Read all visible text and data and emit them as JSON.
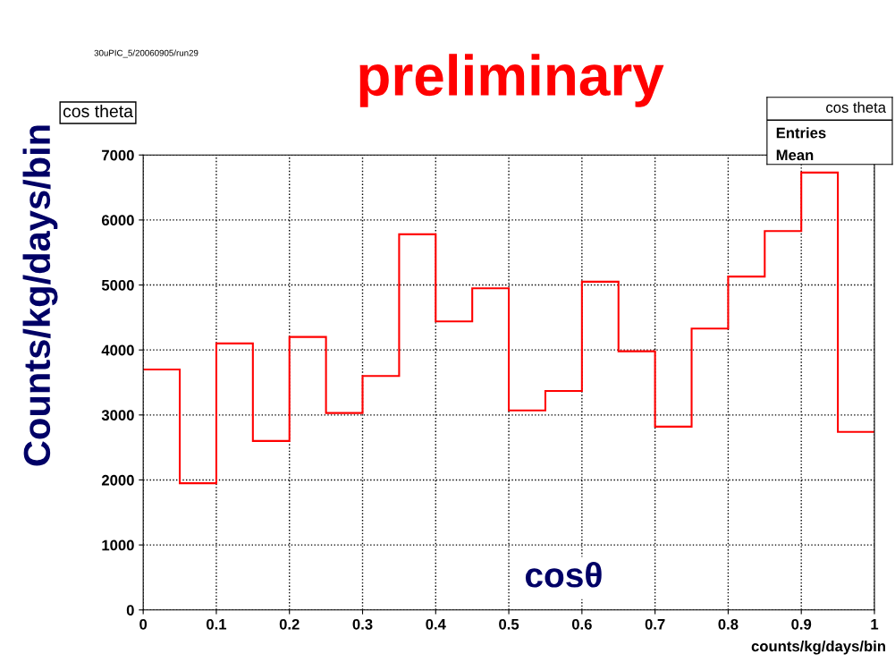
{
  "chart_data": {
    "type": "histogram",
    "title": "cos theta",
    "xlabel": "counts/kg/days/bin",
    "ylabel": "Counts/kg/days/bin",
    "bins": [
      0,
      0.05,
      0.1,
      0.15,
      0.2,
      0.25,
      0.3,
      0.35,
      0.4,
      0.45,
      0.5,
      0.55,
      0.6,
      0.65,
      0.7,
      0.75,
      0.8,
      0.85,
      0.9,
      0.95,
      1
    ],
    "values": [
      3700,
      1950,
      4100,
      2600,
      4200,
      3030,
      3600,
      5780,
      4440,
      4950,
      3070,
      3370,
      5050,
      3980,
      2820,
      4330,
      5130,
      5830,
      6730,
      2740
    ],
    "color": "#ff0000",
    "xlim": [
      0,
      1
    ],
    "xticks": [
      0,
      0.1,
      0.2,
      0.3,
      0.4,
      0.5,
      0.6,
      0.7,
      0.8,
      0.9,
      1
    ],
    "ylim": [
      0,
      7000
    ],
    "yticks": [
      0,
      1000,
      2000,
      3000,
      4000,
      5000,
      6000,
      7000
    ],
    "grid": true,
    "legend": false,
    "annotations": [
      "preliminary",
      "30uPIC_5/20060905/run29",
      "cos theta",
      "Entries",
      "Mean",
      "cosθ"
    ]
  }
}
